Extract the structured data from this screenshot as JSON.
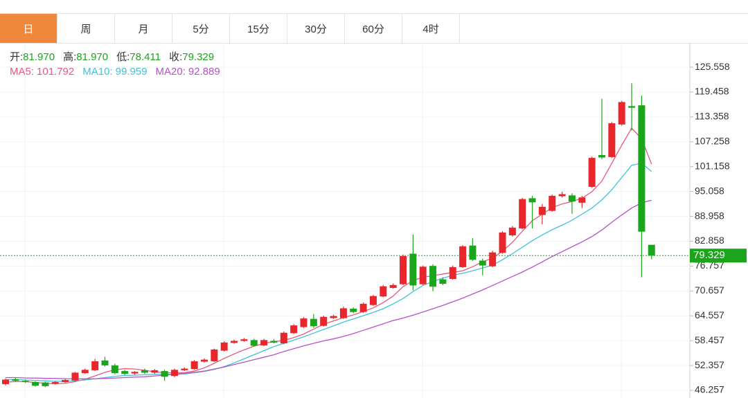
{
  "tabs": [
    "日",
    "周",
    "月",
    "5分",
    "15分",
    "30分",
    "60分",
    "4时"
  ],
  "active_tab": 0,
  "chart_data": {
    "type": "candlestick",
    "quote": [
      {
        "label": "开:",
        "value": "81.970"
      },
      {
        "label": "高:",
        "value": "81.970"
      },
      {
        "label": "低:",
        "value": "78.411"
      },
      {
        "label": "收:",
        "value": "79.329"
      }
    ],
    "up_color": "#e8262b",
    "down_color": "#1aa51a",
    "open": [
      47.8,
      49.0,
      48.6,
      48.3,
      48.2,
      47.9,
      48.3,
      48.7,
      50.5,
      51.2,
      53.6,
      52.4,
      51.0,
      50.4,
      51.2,
      50.6,
      51.0,
      49.8,
      51.2,
      51.5,
      53.3,
      53.4,
      56.0,
      57.9,
      58.4,
      58.6,
      57.3,
      58.4,
      57.8,
      60.3,
      61.8,
      63.8,
      62.1,
      64.0,
      64.0,
      66.3,
      65.5,
      67.2,
      69.3,
      71.4,
      72.3,
      79.8,
      72.3,
      76.8,
      73.5,
      73.6,
      76.5,
      81.8,
      78.1,
      76.7,
      80.0,
      84.3,
      86.0,
      93.4,
      89.3,
      90.3,
      93.9,
      94.1,
      92.3,
      96.2,
      104.0,
      103.5,
      111.5,
      116.0,
      116.2,
      81.97
    ],
    "high": [
      49.2,
      49.3,
      48.9,
      48.5,
      48.4,
      48.5,
      49.0,
      50.8,
      51.6,
      54.0,
      54.5,
      52.8,
      51.3,
      51.0,
      51.6,
      51.5,
      51.3,
      51.6,
      51.9,
      53.7,
      54.1,
      56.5,
      58.3,
      58.7,
      59.1,
      58.9,
      58.9,
      58.8,
      60.7,
      62.5,
      64.2,
      65.0,
      64.6,
      64.8,
      66.8,
      66.6,
      67.8,
      69.7,
      72.1,
      72.5,
      79.6,
      84.5,
      76.9,
      77.2,
      74.0,
      76.9,
      81.9,
      83.6,
      78.6,
      80.5,
      85.3,
      86.6,
      93.5,
      94.0,
      92.0,
      94.3,
      95.0,
      94.6,
      94.0,
      103.6,
      117.8,
      112.1,
      117.3,
      121.6,
      118.6,
      81.97
    ],
    "low": [
      47.5,
      48.4,
      48.1,
      47.2,
      47.1,
      47.7,
      48.1,
      48.5,
      50.3,
      51.0,
      52.1,
      50.2,
      50.0,
      50.1,
      50.3,
      50.3,
      48.6,
      49.5,
      51.0,
      51.3,
      53.1,
      53.2,
      55.8,
      57.7,
      58.2,
      57.0,
      57.1,
      57.8,
      57.6,
      60.1,
      61.6,
      61.6,
      61.9,
      63.8,
      63.8,
      65.2,
      65.3,
      67.0,
      69.1,
      71.2,
      72.1,
      70.8,
      72.1,
      70.6,
      72.1,
      73.4,
      76.3,
      78.0,
      74.5,
      76.5,
      79.8,
      84.0,
      85.8,
      86.0,
      87.0,
      90.1,
      93.6,
      89.6,
      91.0,
      96.0,
      103.0,
      103.3,
      111.2,
      110.0,
      74.0,
      78.411
    ],
    "close": [
      48.9,
      48.6,
      48.3,
      47.4,
      47.3,
      48.3,
      48.8,
      50.6,
      51.3,
      53.4,
      52.4,
      50.5,
      50.3,
      50.8,
      50.6,
      51.2,
      49.6,
      51.3,
      51.6,
      53.4,
      53.8,
      56.3,
      58.0,
      58.4,
      58.8,
      57.2,
      58.6,
      58.0,
      60.4,
      62.2,
      63.9,
      62.0,
      64.3,
      64.5,
      66.4,
      65.5,
      67.5,
      69.4,
      71.8,
      72.1,
      79.2,
      72.0,
      76.6,
      71.7,
      72.4,
      76.5,
      81.6,
      78.3,
      76.9,
      80.1,
      85.0,
      86.2,
      93.2,
      92.4,
      91.3,
      94.0,
      94.4,
      92.6,
      93.6,
      103.3,
      103.4,
      111.8,
      117.0,
      115.6,
      85.2,
      79.329
    ],
    "series": [
      {
        "name": "MA5:",
        "color": "#e8587e",
        "value_label": "101.792",
        "values": [
          48.3,
          48.4,
          48.4,
          48.2,
          48.0,
          47.9,
          48.0,
          48.4,
          49.0,
          49.8,
          50.7,
          51.3,
          51.6,
          51.5,
          51.2,
          50.8,
          50.6,
          50.5,
          50.6,
          51.0,
          51.8,
          52.9,
          54.1,
          55.2,
          56.2,
          57.1,
          57.8,
          58.2,
          58.5,
          59.2,
          60.1,
          61.3,
          62.5,
          63.3,
          64.1,
          64.8,
          65.6,
          66.5,
          67.8,
          69.4,
          71.7,
          73.2,
          74.0,
          74.4,
          74.8,
          75.2,
          75.6,
          76.6,
          77.8,
          78.7,
          80.4,
          82.6,
          85.3,
          87.9,
          89.5,
          91.1,
          92.0,
          92.6,
          93.4,
          95.0,
          97.6,
          102.0,
          106.4,
          110.6,
          108.0,
          101.792
        ]
      },
      {
        "name": "MA10:",
        "color": "#3ec3d8",
        "value_label": "99.959",
        "values": [
          48.9,
          48.9,
          48.8,
          48.7,
          48.6,
          48.5,
          48.5,
          48.6,
          48.8,
          49.1,
          49.4,
          49.7,
          49.9,
          50.0,
          50.1,
          50.2,
          50.2,
          50.2,
          50.3,
          50.6,
          50.9,
          51.4,
          52.1,
          53.0,
          54.0,
          55.0,
          56.0,
          57.0,
          57.8,
          58.6,
          59.4,
          60.3,
          61.2,
          62.1,
          63.0,
          63.8,
          64.6,
          65.4,
          66.3,
          67.5,
          68.8,
          70.5,
          72.0,
          73.0,
          73.8,
          74.5,
          75.0,
          75.6,
          76.3,
          77.0,
          78.3,
          79.8,
          81.4,
          83.0,
          84.4,
          85.7,
          86.8,
          88.0,
          89.5,
          91.0,
          93.0,
          95.5,
          98.5,
          101.5,
          102.0,
          99.959
        ]
      },
      {
        "name": "MA20:",
        "color": "#b452c6",
        "value_label": "92.889",
        "values": [
          49.4,
          49.4,
          49.3,
          49.3,
          49.2,
          49.2,
          49.1,
          49.1,
          49.1,
          49.1,
          49.2,
          49.3,
          49.4,
          49.5,
          49.6,
          49.8,
          50.0,
          50.2,
          50.4,
          50.7,
          51.0,
          51.5,
          52.0,
          52.6,
          53.2,
          53.8,
          54.4,
          55.0,
          55.8,
          56.5,
          57.2,
          57.8,
          58.4,
          58.9,
          59.5,
          60.2,
          61.0,
          61.8,
          62.6,
          63.4,
          64.0,
          64.7,
          65.5,
          66.3,
          67.1,
          68.0,
          68.9,
          69.9,
          70.9,
          72.0,
          73.1,
          74.2,
          75.3,
          76.5,
          77.8,
          79.1,
          80.3,
          81.5,
          82.7,
          84.0,
          85.6,
          87.5,
          89.3,
          91.0,
          92.3,
          92.889
        ]
      }
    ],
    "current_price": 79.329,
    "current_color": "#1aa51a",
    "ylim": [
      44.39,
      131.51
    ],
    "yticks": [
      46.257,
      52.357,
      58.457,
      64.557,
      70.657,
      76.757,
      82.858,
      88.958,
      95.058,
      101.158,
      107.258,
      113.358,
      119.458,
      125.558
    ],
    "grid": true
  }
}
